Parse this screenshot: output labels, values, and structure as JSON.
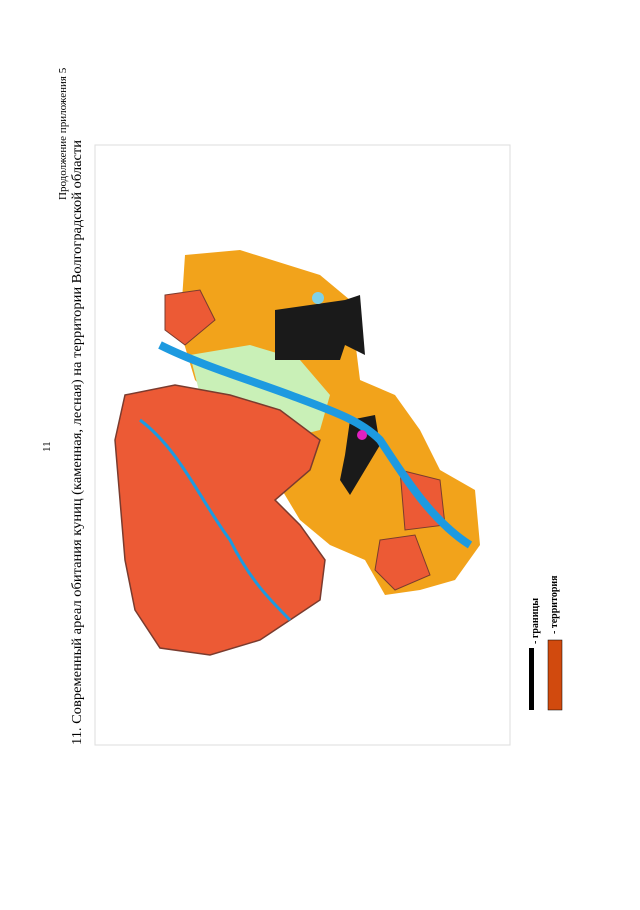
{
  "header": {
    "page_number": "11",
    "appendix_note": "Продолжение приложения 5"
  },
  "title": "11. Современный ареал обитания куниц (каменная, лесная) на территории Волгоградской области",
  "legend": [
    {
      "label": "- границы"
    },
    {
      "label": "- территория"
    }
  ]
}
